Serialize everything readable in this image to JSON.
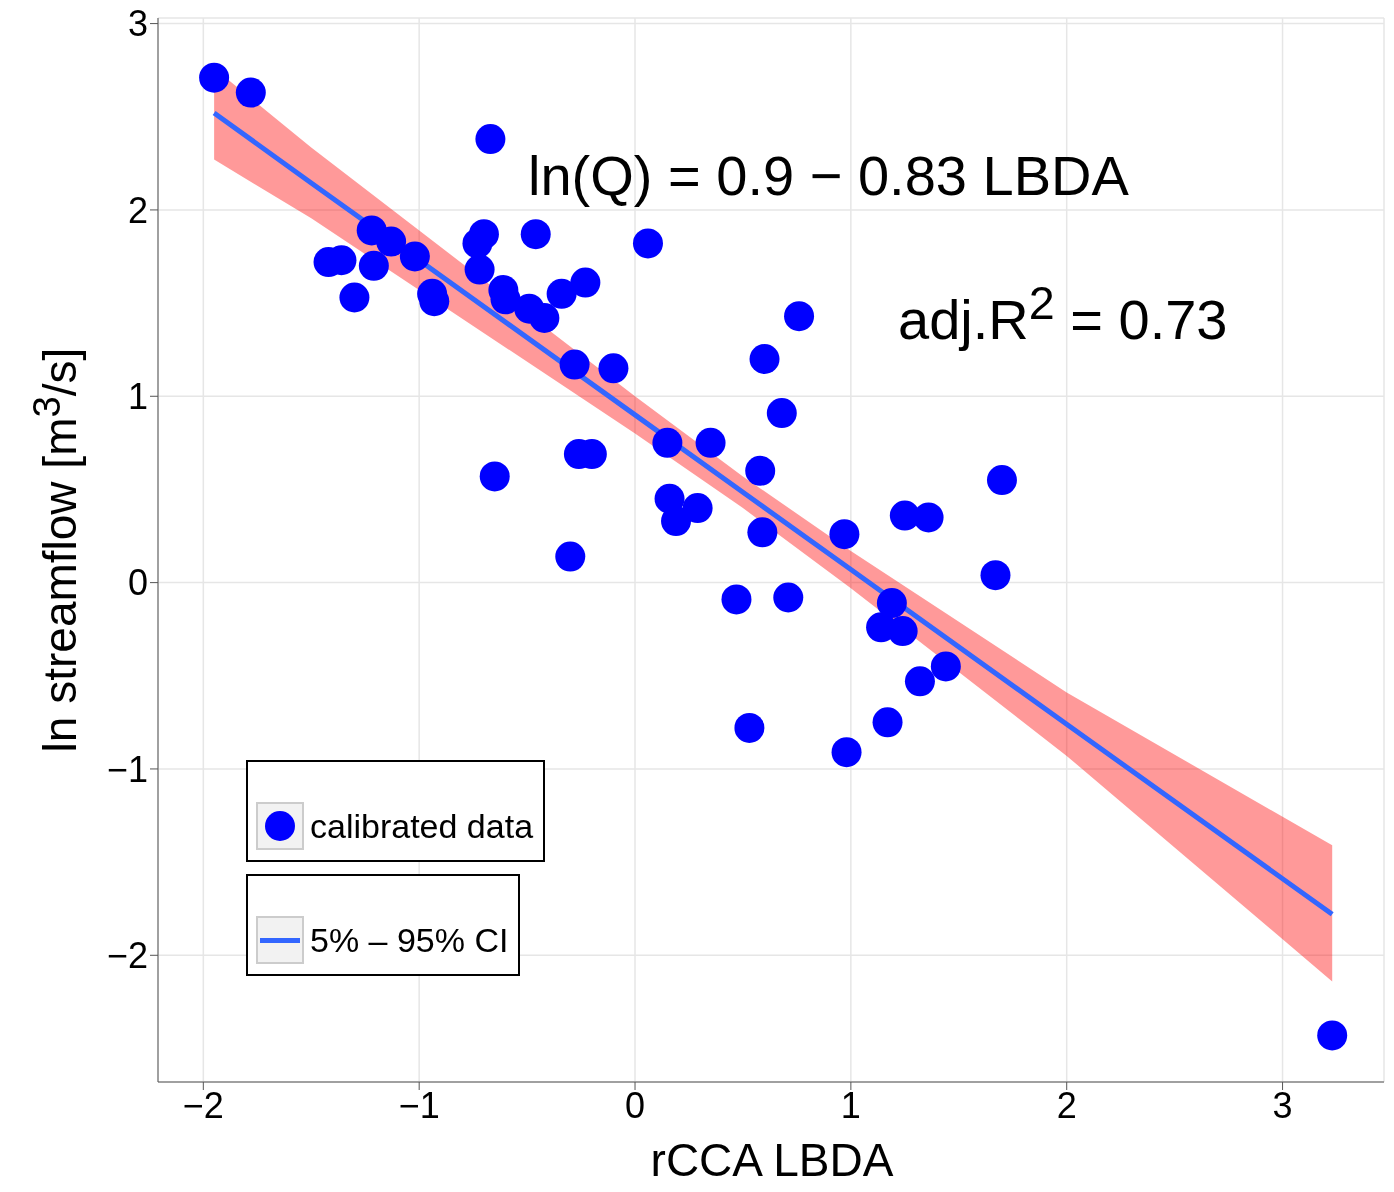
{
  "chart_data": {
    "type": "scatter",
    "xlabel": "rCCA LBDA",
    "ylabel": "ln streamflow [m$^{3}$/s]",
    "xlim": [
      -2.21,
      3.47
    ],
    "ylim": [
      -2.68,
      3.03
    ],
    "xticks": [
      {
        "value": -2,
        "label": "−2"
      },
      {
        "value": -1,
        "label": "−1"
      },
      0,
      1,
      2,
      3
    ],
    "yticks": [
      {
        "value": -2,
        "label": "−2"
      },
      {
        "value": -1,
        "label": "−1"
      },
      0,
      1,
      2,
      3
    ],
    "grid": true,
    "legend": "bottom left",
    "annotations": [
      "ln(Q) = 0.9 − 0.83 LBDA",
      "adj.R$^{2}$ = 0.73"
    ],
    "series": [
      {
        "name": "calibrated data",
        "marker": "circle",
        "color": "#0000ff",
        "x": [
          -1.95,
          -1.78,
          -0.67,
          -1.42,
          -1.36,
          -1.3,
          -1.22,
          -1.21,
          -1.13,
          -1.02,
          -0.94,
          -0.93,
          -0.73,
          -0.7,
          -0.72,
          -0.65,
          -0.61,
          -0.6,
          -0.49,
          -0.46,
          -0.42,
          -0.34,
          -0.23,
          -0.28,
          -0.3,
          -0.26,
          -0.2,
          -0.1,
          0.06,
          0.15,
          0.16,
          0.19,
          0.29,
          0.35,
          0.47,
          0.53,
          0.58,
          0.59,
          0.6,
          0.68,
          0.71,
          0.76,
          0.97,
          0.98,
          1.14,
          1.17,
          1.19,
          1.24,
          1.25,
          1.32,
          1.36,
          1.44,
          1.67,
          1.7,
          3.23
        ],
        "values": [
          2.71,
          2.63,
          2.38,
          1.72,
          1.73,
          1.53,
          1.89,
          1.7,
          1.83,
          1.75,
          1.55,
          1.51,
          1.82,
          1.87,
          1.68,
          0.57,
          1.57,
          1.52,
          1.47,
          1.87,
          1.42,
          1.55,
          1.61,
          1.17,
          0.14,
          0.69,
          0.69,
          1.15,
          1.82,
          0.75,
          0.45,
          0.33,
          0.4,
          0.75,
          -0.09,
          -0.78,
          0.6,
          0.27,
          1.2,
          0.91,
          -0.08,
          1.43,
          0.26,
          -0.91,
          -0.24,
          -0.75,
          -0.11,
          -0.26,
          0.36,
          -0.53,
          0.35,
          -0.45,
          0.04,
          0.55,
          -2.43
        ]
      },
      {
        "name": "5% – 95% CI",
        "type": "line",
        "color": "#3366ff",
        "x": [
          -1.95,
          -1.5,
          0,
          0.5,
          1,
          2,
          3.23
        ],
        "values": [
          2.52,
          2.145,
          0.9,
          0.485,
          0.07,
          -0.76,
          -1.78
        ],
        "lower": [
          2.27,
          1.955,
          0.8,
          0.4,
          -0.03,
          -0.93,
          -2.14
        ],
        "upper": [
          2.76,
          2.335,
          1.0,
          0.57,
          0.17,
          -0.59,
          -1.41
        ]
      }
    ]
  }
}
